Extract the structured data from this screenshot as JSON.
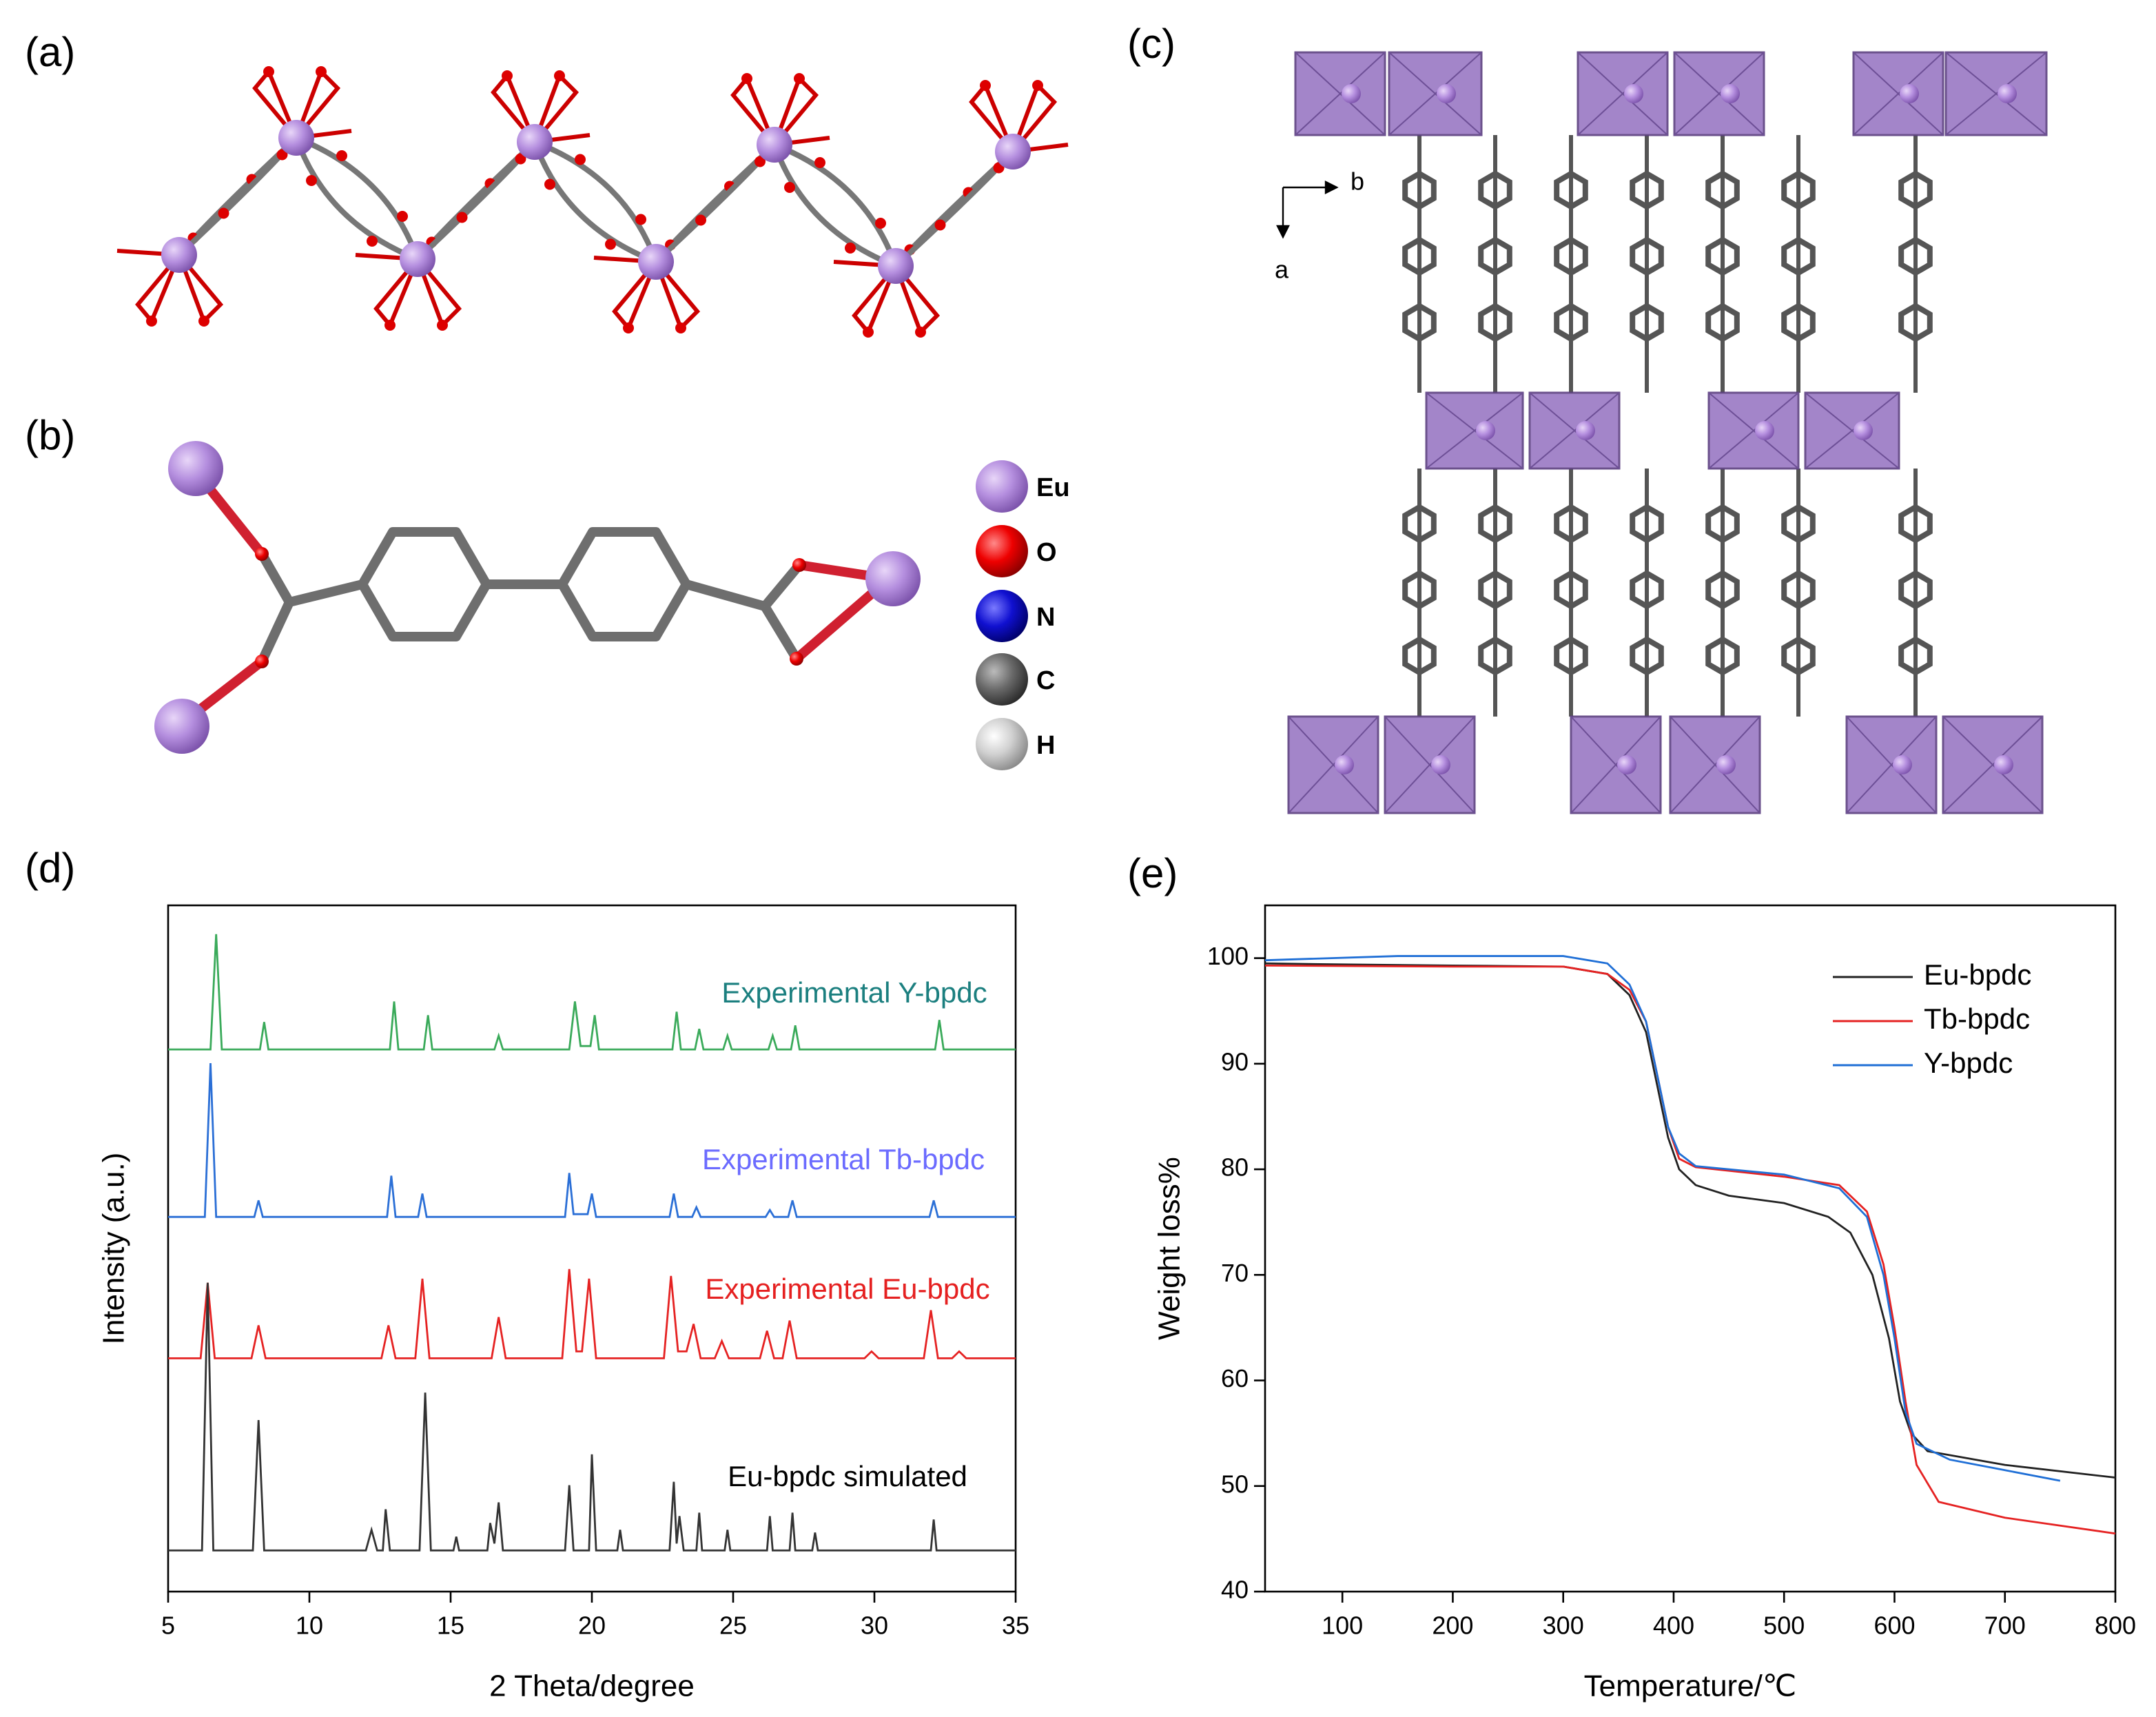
{
  "panels": [
    "(a)",
    "(b)",
    "(c)",
    "(d)",
    "(e)"
  ],
  "structure_legend": [
    "Eu",
    "O",
    "N",
    "C",
    "H"
  ],
  "axes_c": [
    "b",
    "a"
  ],
  "chart_data": [
    {
      "type": "line",
      "xlabel": "2 Theta/degree",
      "ylabel": "Intensity (a.u.)",
      "xlim": [
        5,
        35
      ],
      "ylim": [
        0,
        100
      ],
      "xticks": [
        5,
        10,
        15,
        20,
        25,
        30,
        35
      ],
      "series": [
        {
          "name": "Experimental Y-bpdc",
          "color": "#3aaa5a",
          "label_color": "#1b7f7f",
          "x": [
            5,
            6.5,
            6.7,
            6.9,
            8.25,
            8.4,
            8.55,
            12.85,
            13.0,
            13.15,
            14.05,
            14.2,
            14.35,
            16.55,
            16.7,
            16.85,
            19.2,
            19.4,
            19.6,
            19.95,
            20.1,
            20.25,
            22.85,
            23.0,
            23.15,
            23.65,
            23.8,
            23.95,
            24.65,
            24.8,
            24.95,
            26.25,
            26.4,
            26.55,
            27.05,
            27.2,
            27.35,
            32.15,
            32.3,
            32.45,
            35
          ],
          "values": [
            79,
            79,
            95.8,
            79,
            79,
            83,
            79,
            79,
            86,
            79,
            79,
            84,
            79,
            79,
            81,
            79,
            79,
            86,
            79.5,
            79.5,
            84,
            79,
            79,
            84.5,
            79,
            79,
            82,
            79,
            79,
            81,
            79,
            79,
            81,
            79,
            79,
            82.5,
            79,
            79,
            83.3,
            79,
            79
          ]
        },
        {
          "name": "Experimental Tb-bpdc",
          "color": "#2b6fd6",
          "label_color": "#6b6bff",
          "x": [
            5,
            6.3,
            6.5,
            6.7,
            8.05,
            8.2,
            8.35,
            12.75,
            12.9,
            13.05,
            13.85,
            14.0,
            14.15,
            19.05,
            19.2,
            19.35,
            19.85,
            20.0,
            20.15,
            22.75,
            22.9,
            23.05,
            23.55,
            23.7,
            23.85,
            26.15,
            26.3,
            26.45,
            26.95,
            27.1,
            27.25,
            31.95,
            32.1,
            32.25,
            35
          ],
          "values": [
            54.6,
            54.6,
            77,
            54.6,
            54.6,
            57,
            54.6,
            54.6,
            60.6,
            54.6,
            54.6,
            58,
            54.6,
            54.6,
            61,
            55,
            55,
            58,
            54.6,
            54.6,
            58,
            54.6,
            54.6,
            56,
            54.6,
            54.6,
            55.6,
            54.6,
            54.6,
            57,
            54.6,
            54.6,
            57,
            54.6,
            54.6
          ]
        },
        {
          "name": "Experimental Eu-bpdc",
          "color": "#e52222",
          "label_color": "#e52020",
          "x": [
            5,
            6.15,
            6.4,
            6.65,
            7.95,
            8.2,
            8.45,
            12.55,
            12.8,
            13.05,
            13.75,
            14.0,
            14.25,
            16.45,
            16.7,
            16.95,
            18.95,
            19.2,
            19.45,
            19.65,
            19.9,
            20.15,
            22.55,
            22.8,
            23.05,
            23.35,
            23.6,
            23.85,
            24.35,
            24.6,
            24.85,
            25.95,
            26.2,
            26.45,
            26.75,
            27.0,
            27.25,
            29.65,
            29.9,
            30.15,
            31.75,
            32.0,
            32.25,
            32.75,
            33.0,
            33.25,
            35
          ],
          "values": [
            34,
            34,
            45,
            34,
            34,
            38.8,
            34,
            34,
            38.8,
            34,
            34,
            45.6,
            34,
            34,
            40,
            34,
            34,
            47,
            35,
            35,
            45.6,
            34,
            34,
            46,
            35,
            35,
            39,
            34,
            34,
            36.5,
            34,
            34,
            38,
            34,
            34,
            39.5,
            34,
            34,
            35,
            34,
            34,
            41,
            34,
            34,
            35,
            34,
            34
          ]
        },
        {
          "name": "Eu-bpdc simulated",
          "color": "#333333",
          "label_color": "#000000",
          "x": [
            5,
            6.2,
            6.4,
            6.6,
            8.0,
            8.2,
            8.4,
            12.0,
            12.2,
            12.4,
            12.6,
            12.7,
            12.85,
            13.9,
            14.1,
            14.3,
            15.1,
            15.2,
            15.3,
            16.3,
            16.4,
            16.55,
            16.7,
            16.85,
            19.05,
            19.2,
            19.35,
            19.9,
            20.0,
            20.15,
            20.9,
            21.0,
            21.1,
            22.75,
            22.9,
            23.0,
            23.1,
            23.25,
            23.7,
            23.8,
            23.9,
            24.7,
            24.8,
            24.9,
            26.2,
            26.3,
            26.4,
            27.0,
            27.1,
            27.2,
            27.8,
            27.9,
            28.0,
            32.0,
            32.1,
            32.2,
            35
          ],
          "values": [
            6,
            6,
            45,
            6,
            6,
            25,
            6,
            6,
            9,
            6,
            6,
            12,
            6,
            6,
            29,
            6,
            6,
            8,
            6,
            6,
            10,
            7,
            13,
            6,
            6,
            15.5,
            6,
            6,
            20,
            6,
            6,
            9,
            6,
            6,
            16,
            7,
            11,
            6,
            6,
            11.5,
            6,
            6,
            9,
            6,
            6,
            11,
            6,
            6,
            11.5,
            6,
            6,
            8.6,
            6,
            6,
            10.5,
            6,
            6
          ]
        }
      ]
    },
    {
      "type": "line",
      "xlabel": "Temperature/℃",
      "ylabel": "Weight loss%",
      "xlim": [
        30,
        800
      ],
      "ylim": [
        40,
        105
      ],
      "xticks": [
        100,
        200,
        300,
        400,
        500,
        600,
        700,
        800
      ],
      "yticks": [
        40,
        50,
        60,
        70,
        80,
        90,
        100
      ],
      "legend": "upper right",
      "series": [
        {
          "name": "Eu-bpdc",
          "color": "#222222",
          "x": [
            30,
            100,
            200,
            300,
            340,
            360,
            375,
            385,
            395,
            405,
            420,
            450,
            500,
            540,
            560,
            580,
            595,
            605,
            615,
            630,
            700,
            800
          ],
          "values": [
            99.5,
            99.4,
            99.3,
            99.2,
            98.5,
            96.5,
            93,
            88,
            83,
            80,
            78.5,
            77.5,
            76.8,
            75.5,
            74,
            70,
            64,
            58,
            55,
            53.3,
            52,
            50.8
          ]
        },
        {
          "name": "Tb-bpdc",
          "color": "#e52222",
          "x": [
            30,
            200,
            300,
            340,
            360,
            375,
            385,
            395,
            405,
            420,
            500,
            550,
            575,
            590,
            600,
            610,
            620,
            640,
            700,
            800
          ],
          "values": [
            99.3,
            99.2,
            99.2,
            98.5,
            97,
            94,
            89,
            84,
            81,
            80.2,
            79.3,
            78.5,
            76,
            71,
            65,
            58,
            52,
            48.5,
            47,
            45.5
          ]
        },
        {
          "name": "Y-bpdc",
          "color": "#1f6fd6",
          "x": [
            30,
            150,
            300,
            340,
            360,
            375,
            385,
            395,
            405,
            420,
            500,
            550,
            575,
            590,
            600,
            610,
            620,
            650,
            700,
            750
          ],
          "values": [
            99.8,
            100.2,
            100.2,
            99.5,
            97.5,
            94,
            89,
            84,
            81.5,
            80.3,
            79.5,
            78.2,
            75.5,
            70,
            64,
            57,
            54,
            52.5,
            51.5,
            50.5
          ]
        }
      ]
    }
  ]
}
